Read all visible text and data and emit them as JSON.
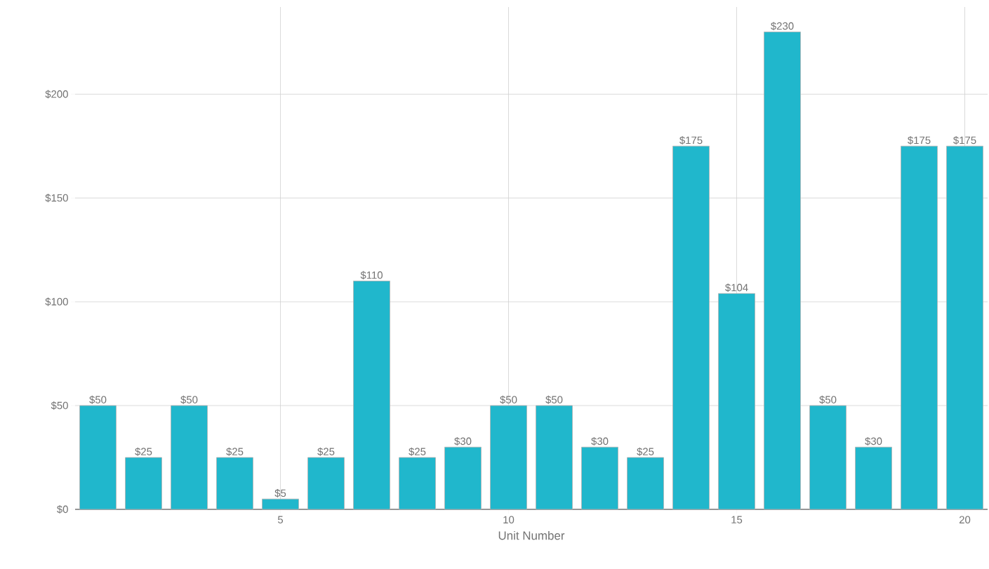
{
  "chart_data": {
    "type": "bar",
    "xlabel": "Unit Number",
    "x": [
      1,
      2,
      3,
      4,
      5,
      6,
      7,
      8,
      9,
      10,
      11,
      12,
      13,
      14,
      15,
      16,
      17,
      18,
      19,
      20
    ],
    "values": [
      50,
      25,
      50,
      25,
      5,
      25,
      110,
      25,
      30,
      50,
      50,
      30,
      25,
      175,
      104,
      230,
      50,
      30,
      175,
      175
    ],
    "value_labels": [
      "$50",
      "$25",
      "$50",
      "$25",
      "$5",
      "$25",
      "$110",
      "$25",
      "$30",
      "$50",
      "$50",
      "$30",
      "$25",
      "$175",
      "$104",
      "$230",
      "$50",
      "$30",
      "$175",
      "$175"
    ],
    "color": "#20b7cc",
    "xlim": [
      0.5,
      20.5
    ],
    "xticks": [
      5,
      10,
      15,
      20
    ],
    "ylim": [
      0,
      242
    ],
    "yticks": [
      {
        "value": 0,
        "label": "$0"
      },
      {
        "value": 50,
        "label": "$50"
      },
      {
        "value": 100,
        "label": "$100"
      },
      {
        "value": 150,
        "label": "$150"
      },
      {
        "value": 200,
        "label": "$200"
      }
    ],
    "grid": true
  }
}
